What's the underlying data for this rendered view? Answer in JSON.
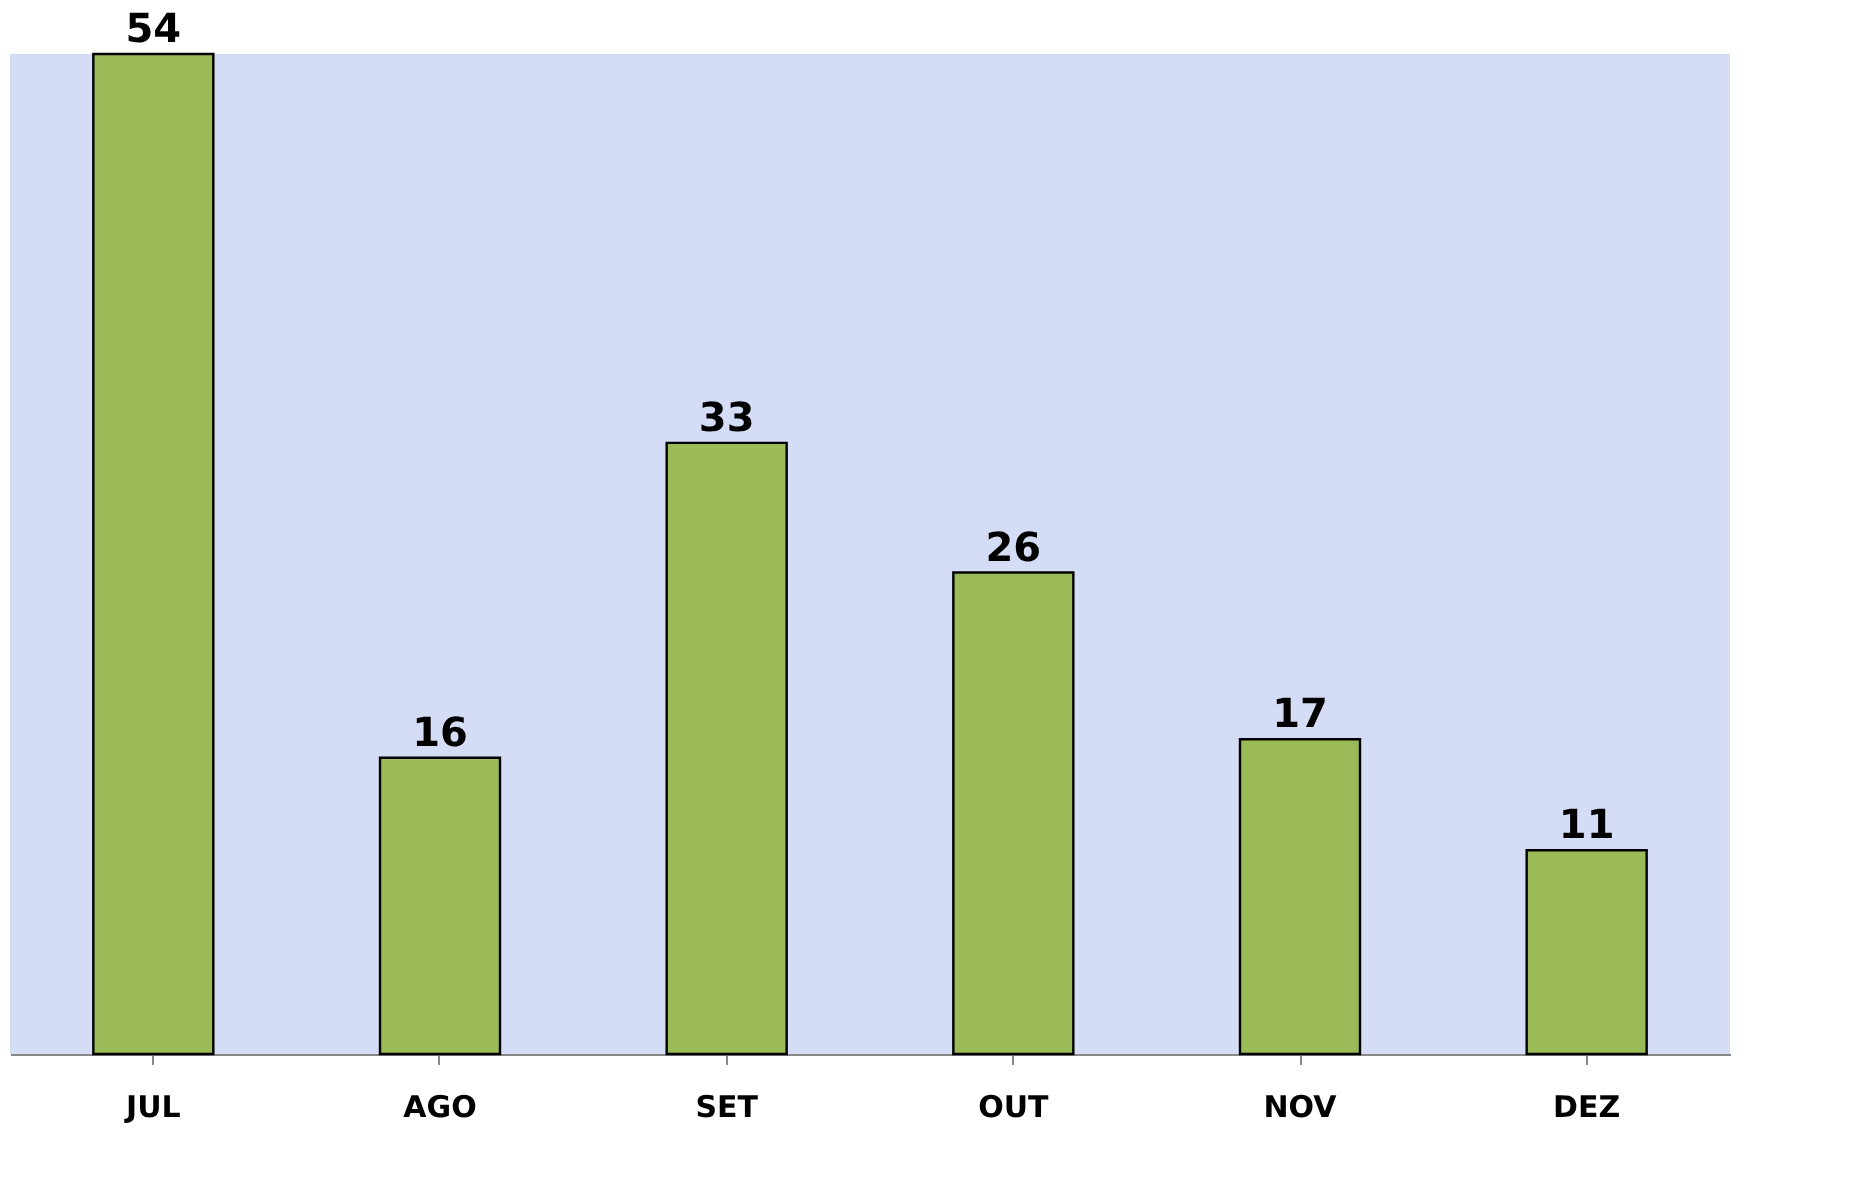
{
  "chart_data": {
    "type": "bar",
    "categories": [
      "JUL",
      "AGO",
      "SET",
      "OUT",
      "NOV",
      "DEZ"
    ],
    "values": [
      54,
      16,
      33,
      26,
      17,
      11
    ],
    "color": "#9bbb59",
    "data_labels": true
  }
}
